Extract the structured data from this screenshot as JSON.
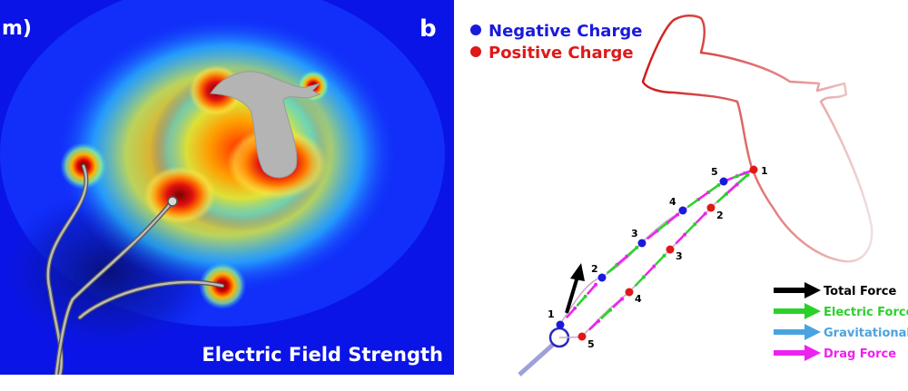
{
  "left_panel": {
    "corner_label": "m)",
    "panel_letter": "b",
    "caption": "Electric Field Strength"
  },
  "right_panel": {
    "top_legend": [
      {
        "label": "Negative Charge",
        "color": "#1a1adc"
      },
      {
        "label": "Positive Charge",
        "color": "#e01818"
      }
    ],
    "force_legend": [
      {
        "label": "Total Force",
        "color": "#000000"
      },
      {
        "label": "Electric Force",
        "color": "#2bd12b"
      },
      {
        "label": "Gravitational",
        "color": "#4aa3e0"
      },
      {
        "label": "Drag Force",
        "color": "#ee22ee"
      }
    ],
    "upper_path_labels": [
      "1",
      "2",
      "3",
      "4",
      "5"
    ],
    "lower_path_labels": [
      "1",
      "2",
      "3",
      "4",
      "5"
    ]
  },
  "colors": {
    "field_low": "#0a14e6",
    "field_high": "#c8101a",
    "negative_point": "#1a1adc",
    "positive_point": "#e01818",
    "plant": "#b4b4b4"
  }
}
